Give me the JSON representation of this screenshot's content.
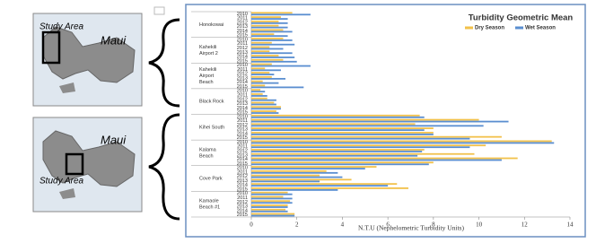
{
  "maps": [
    {
      "island": "Maui",
      "label": "Study Area"
    },
    {
      "island": "Maui",
      "label": "Study Area"
    }
  ],
  "chart_data": {
    "type": "bar",
    "orientation": "horizontal",
    "title": "Turbidity  Geometric Mean",
    "x_label": "N.T.U (Nephelometric Turbidity Units)",
    "groups": [
      {
        "label": [
          "Honokowai"
        ],
        "categories": [
          "2010",
          "2011",
          "2012",
          "2013",
          "2014",
          "2015"
        ]
      },
      {
        "label": [
          "Kahekili",
          "Airport 2"
        ],
        "categories": [
          "2010",
          "2011",
          "2012",
          "2013",
          "2014",
          "2015"
        ]
      },
      {
        "label": [
          "Kahekili",
          "Airport",
          "Beach"
        ],
        "categories": [
          "2010",
          "2011",
          "2012",
          "2013",
          "2014",
          "2015"
        ]
      },
      {
        "label": [
          "Black Rock"
        ],
        "categories": [
          "2010",
          "2011",
          "2012",
          "2013",
          "2014",
          "2015"
        ]
      },
      {
        "label": [
          "Kihei South"
        ],
        "categories": [
          "2010",
          "2011",
          "2012",
          "2013",
          "2014",
          "2015"
        ]
      },
      {
        "label": [
          "Kalama",
          "Beach"
        ],
        "categories": [
          "2010",
          "2011",
          "2012",
          "2013",
          "2014",
          "2015"
        ]
      },
      {
        "label": [
          "Cove Park"
        ],
        "categories": [
          "2010",
          "2011",
          "2012",
          "2013",
          "2014",
          "2015"
        ]
      },
      {
        "label": [
          "Kamaole",
          "Beach #1"
        ],
        "categories": [
          "2010",
          "2011",
          "2012",
          "2013",
          "2014",
          "2015"
        ]
      }
    ],
    "series": [
      {
        "name": "Dry Season",
        "color": "#f2c14a",
        "values": [
          1.8,
          1.3,
          1.2,
          1.2,
          1.4,
          1.0,
          1.4,
          0.9,
          0.8,
          0.8,
          1.2,
          1.4,
          0.9,
          0.6,
          0.8,
          0.9,
          0.5,
          0.6,
          0.4,
          0.5,
          0.7,
          1.0,
          1.3,
          1.1,
          7.4,
          10.0,
          7.2,
          8.0,
          8.0,
          11.0,
          13.2,
          10.3,
          7.6,
          9.8,
          11.7,
          8.0,
          5.5,
          3.3,
          3.0,
          4.4,
          6.4,
          6.9,
          1.6,
          1.4,
          1.7,
          1.6,
          1.5,
          1.9
        ]
      },
      {
        "name": "Wet Season",
        "color": "#5a8ed0",
        "values": [
          2.6,
          1.6,
          1.6,
          1.6,
          1.8,
          1.6,
          1.8,
          1.9,
          1.4,
          1.8,
          1.9,
          2.0,
          2.6,
          1.3,
          1.0,
          1.5,
          1.2,
          2.3,
          0.6,
          0.7,
          1.1,
          1.1,
          1.3,
          1.2,
          7.6,
          11.3,
          10.2,
          7.6,
          8.0,
          9.6,
          13.3,
          9.6,
          7.5,
          7.3,
          11.0,
          7.8,
          5.0,
          3.8,
          4.0,
          3.0,
          6.0,
          3.8,
          1.8,
          1.8,
          1.8,
          1.6,
          1.6,
          1.9
        ]
      }
    ],
    "xlim": [
      0,
      14
    ],
    "xticks": [
      0,
      2,
      4,
      6,
      8,
      10,
      12,
      14
    ],
    "legend": "top-right"
  }
}
